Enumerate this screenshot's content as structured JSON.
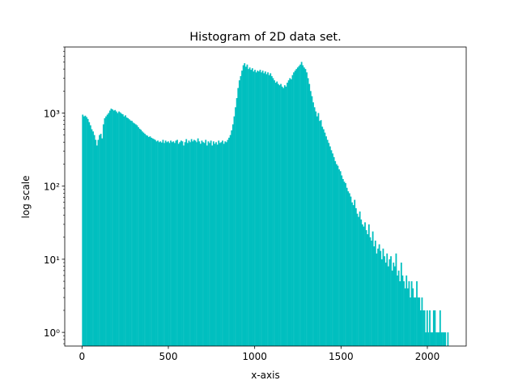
{
  "chart_data": {
    "type": "bar",
    "title": "Histogram of 2D data set.",
    "xlabel": "x-axis",
    "ylabel": "log scale",
    "xlim": [
      -100,
      2225
    ],
    "ylim": [
      0.65,
      8000
    ],
    "yscale": "log",
    "grid": false,
    "legend": "none",
    "bar_color": "#00bfbf",
    "x_ticks": [
      0,
      500,
      1000,
      1500,
      2000
    ],
    "x_tick_labels": [
      "0",
      "500",
      "1000",
      "1500",
      "2000"
    ],
    "y_ticks": [
      1,
      10,
      100,
      1000
    ],
    "y_tick_labels": [
      "10⁰",
      "10¹",
      "10²",
      "10³"
    ],
    "bin_width": 7.5,
    "bins": [
      [
        0,
        950
      ],
      [
        7.5,
        900
      ],
      [
        15,
        920
      ],
      [
        22.5,
        880
      ],
      [
        30,
        830
      ],
      [
        37.5,
        750
      ],
      [
        45,
        680
      ],
      [
        52.5,
        600
      ],
      [
        60,
        560
      ],
      [
        67.5,
        500
      ],
      [
        75,
        430
      ],
      [
        82.5,
        360
      ],
      [
        90,
        430
      ],
      [
        97.5,
        500
      ],
      [
        105,
        520
      ],
      [
        112.5,
        450
      ],
      [
        120,
        700
      ],
      [
        127.5,
        850
      ],
      [
        135,
        900
      ],
      [
        142.5,
        950
      ],
      [
        150,
        1000
      ],
      [
        157.5,
        1080
      ],
      [
        165,
        1150
      ],
      [
        172.5,
        1120
      ],
      [
        180,
        1080
      ],
      [
        187.5,
        1100
      ],
      [
        195,
        1050
      ],
      [
        202.5,
        1000
      ],
      [
        210,
        1050
      ],
      [
        217.5,
        1020
      ],
      [
        225,
        980
      ],
      [
        232.5,
        960
      ],
      [
        240,
        900
      ],
      [
        247.5,
        930
      ],
      [
        255,
        870
      ],
      [
        262.5,
        850
      ],
      [
        270,
        820
      ],
      [
        277.5,
        790
      ],
      [
        285,
        780
      ],
      [
        292.5,
        740
      ],
      [
        300,
        720
      ],
      [
        307.5,
        700
      ],
      [
        315,
        680
      ],
      [
        322.5,
        640
      ],
      [
        330,
        610
      ],
      [
        337.5,
        590
      ],
      [
        345,
        560
      ],
      [
        352.5,
        540
      ],
      [
        360,
        520
      ],
      [
        367.5,
        500
      ],
      [
        375,
        490
      ],
      [
        382.5,
        470
      ],
      [
        390,
        480
      ],
      [
        397.5,
        460
      ],
      [
        405,
        450
      ],
      [
        412.5,
        440
      ],
      [
        420,
        430
      ],
      [
        427.5,
        410
      ],
      [
        435,
        420
      ],
      [
        442.5,
        400
      ],
      [
        450,
        410
      ],
      [
        457.5,
        395
      ],
      [
        465,
        430
      ],
      [
        472.5,
        390
      ],
      [
        480,
        420
      ],
      [
        487.5,
        400
      ],
      [
        495,
        410
      ],
      [
        502.5,
        390
      ],
      [
        510,
        420
      ],
      [
        517.5,
        400
      ],
      [
        525,
        410
      ],
      [
        532.5,
        390
      ],
      [
        540,
        420
      ],
      [
        547.5,
        430
      ],
      [
        555,
        380
      ],
      [
        562.5,
        400
      ],
      [
        570,
        420
      ],
      [
        577.5,
        410
      ],
      [
        585,
        360
      ],
      [
        592.5,
        400
      ],
      [
        600,
        440
      ],
      [
        607.5,
        390
      ],
      [
        615,
        420
      ],
      [
        622.5,
        400
      ],
      [
        630,
        440
      ],
      [
        637.5,
        410
      ],
      [
        645,
        430
      ],
      [
        652.5,
        420
      ],
      [
        660,
        400
      ],
      [
        667.5,
        450
      ],
      [
        675,
        410
      ],
      [
        682.5,
        380
      ],
      [
        690,
        420
      ],
      [
        697.5,
        400
      ],
      [
        705,
        390
      ],
      [
        712.5,
        430
      ],
      [
        720,
        360
      ],
      [
        727.5,
        410
      ],
      [
        735,
        390
      ],
      [
        742.5,
        420
      ],
      [
        750,
        360
      ],
      [
        757.5,
        410
      ],
      [
        765,
        380
      ],
      [
        772.5,
        400
      ],
      [
        780,
        370
      ],
      [
        787.5,
        420
      ],
      [
        795,
        390
      ],
      [
        802.5,
        400
      ],
      [
        810,
        420
      ],
      [
        817.5,
        380
      ],
      [
        825,
        410
      ],
      [
        832.5,
        400
      ],
      [
        840,
        430
      ],
      [
        847.5,
        460
      ],
      [
        855,
        500
      ],
      [
        862.5,
        580
      ],
      [
        870,
        700
      ],
      [
        877.5,
        900
      ],
      [
        885,
        1200
      ],
      [
        892.5,
        1600
      ],
      [
        900,
        2200
      ],
      [
        907.5,
        2800
      ],
      [
        915,
        3200
      ],
      [
        922.5,
        3800
      ],
      [
        930,
        4500
      ],
      [
        937.5,
        4800
      ],
      [
        945,
        4300
      ],
      [
        952.5,
        4600
      ],
      [
        960,
        4000
      ],
      [
        967.5,
        4200
      ],
      [
        975,
        3900
      ],
      [
        982.5,
        4100
      ],
      [
        990,
        3700
      ],
      [
        997.5,
        3900
      ],
      [
        1005,
        3600
      ],
      [
        1012.5,
        3800
      ],
      [
        1020,
        3700
      ],
      [
        1027.5,
        3900
      ],
      [
        1035,
        3600
      ],
      [
        1042.5,
        3800
      ],
      [
        1050,
        3500
      ],
      [
        1057.5,
        3700
      ],
      [
        1065,
        3400
      ],
      [
        1072.5,
        3600
      ],
      [
        1080,
        3300
      ],
      [
        1087.5,
        3500
      ],
      [
        1095,
        3200
      ],
      [
        1102.5,
        3000
      ],
      [
        1110,
        2800
      ],
      [
        1117.5,
        2600
      ],
      [
        1125,
        2700
      ],
      [
        1132.5,
        2500
      ],
      [
        1140,
        2400
      ],
      [
        1147.5,
        2500
      ],
      [
        1155,
        2300
      ],
      [
        1162.5,
        2200
      ],
      [
        1170,
        2400
      ],
      [
        1177.5,
        2300
      ],
      [
        1185,
        2600
      ],
      [
        1192.5,
        2800
      ],
      [
        1200,
        3000
      ],
      [
        1207.5,
        2900
      ],
      [
        1215,
        3300
      ],
      [
        1222.5,
        3600
      ],
      [
        1230,
        3800
      ],
      [
        1237.5,
        4000
      ],
      [
        1245,
        4200
      ],
      [
        1252.5,
        4400
      ],
      [
        1260,
        4600
      ],
      [
        1267.5,
        5000
      ],
      [
        1275,
        4500
      ],
      [
        1282.5,
        4200
      ],
      [
        1290,
        4000
      ],
      [
        1297.5,
        3600
      ],
      [
        1305,
        3000
      ],
      [
        1312.5,
        2500
      ],
      [
        1320,
        2000
      ],
      [
        1327.5,
        1700
      ],
      [
        1335,
        1400
      ],
      [
        1342.5,
        1200
      ],
      [
        1350,
        1050
      ],
      [
        1357.5,
        900
      ],
      [
        1365,
        1000
      ],
      [
        1372.5,
        780
      ],
      [
        1380,
        800
      ],
      [
        1387.5,
        650
      ],
      [
        1395,
        600
      ],
      [
        1402.5,
        540
      ],
      [
        1410,
        480
      ],
      [
        1417.5,
        430
      ],
      [
        1425,
        390
      ],
      [
        1432.5,
        350
      ],
      [
        1440,
        310
      ],
      [
        1447.5,
        280
      ],
      [
        1455,
        250
      ],
      [
        1462.5,
        220
      ],
      [
        1470,
        200
      ],
      [
        1477.5,
        190
      ],
      [
        1485,
        170
      ],
      [
        1492.5,
        160
      ],
      [
        1500,
        140
      ],
      [
        1507.5,
        125
      ],
      [
        1515,
        115
      ],
      [
        1522.5,
        110
      ],
      [
        1530,
        95
      ],
      [
        1537.5,
        85
      ],
      [
        1545,
        80
      ],
      [
        1552.5,
        72
      ],
      [
        1560,
        60
      ],
      [
        1567.5,
        55
      ],
      [
        1575,
        65
      ],
      [
        1582.5,
        50
      ],
      [
        1590,
        42
      ],
      [
        1597.5,
        38
      ],
      [
        1605,
        45
      ],
      [
        1612.5,
        35
      ],
      [
        1620,
        30
      ],
      [
        1627.5,
        28
      ],
      [
        1635,
        32
      ],
      [
        1642.5,
        25
      ],
      [
        1650,
        22
      ],
      [
        1657.5,
        30
      ],
      [
        1665,
        20
      ],
      [
        1672.5,
        18
      ],
      [
        1680,
        24
      ],
      [
        1687.5,
        15
      ],
      [
        1695,
        18
      ],
      [
        1702.5,
        12
      ],
      [
        1710,
        14
      ],
      [
        1717.5,
        16
      ],
      [
        1725,
        13
      ],
      [
        1732.5,
        10
      ],
      [
        1740,
        14
      ],
      [
        1747.5,
        11
      ],
      [
        1755,
        9
      ],
      [
        1762.5,
        12
      ],
      [
        1770,
        8
      ],
      [
        1777.5,
        10
      ],
      [
        1785,
        11
      ],
      [
        1792.5,
        7
      ],
      [
        1800,
        9
      ],
      [
        1807.5,
        8
      ],
      [
        1815,
        12
      ],
      [
        1822.5,
        6
      ],
      [
        1830,
        7
      ],
      [
        1837.5,
        5
      ],
      [
        1845,
        9
      ],
      [
        1852.5,
        6
      ],
      [
        1860,
        5
      ],
      [
        1867.5,
        4
      ],
      [
        1875,
        6
      ],
      [
        1882.5,
        4
      ],
      [
        1890,
        5
      ],
      [
        1897.5,
        3
      ],
      [
        1905,
        5
      ],
      [
        1912.5,
        4
      ],
      [
        1920,
        3
      ],
      [
        1927.5,
        3
      ],
      [
        1935,
        5
      ],
      [
        1942.5,
        3
      ],
      [
        1950,
        3
      ],
      [
        1957.5,
        2
      ],
      [
        1965,
        3
      ],
      [
        1972.5,
        2
      ],
      [
        1980,
        2
      ],
      [
        1987.5,
        1
      ],
      [
        1995,
        2
      ],
      [
        2002.5,
        1
      ],
      [
        2010,
        2
      ],
      [
        2017.5,
        1
      ],
      [
        2025,
        1
      ],
      [
        2032.5,
        2
      ],
      [
        2040,
        2
      ],
      [
        2047.5,
        1
      ],
      [
        2055,
        1
      ],
      [
        2062.5,
        1
      ],
      [
        2070,
        2
      ],
      [
        2077.5,
        1
      ],
      [
        2085,
        1
      ],
      [
        2092.5,
        1
      ],
      [
        2100,
        1
      ],
      [
        2115,
        1
      ]
    ]
  }
}
